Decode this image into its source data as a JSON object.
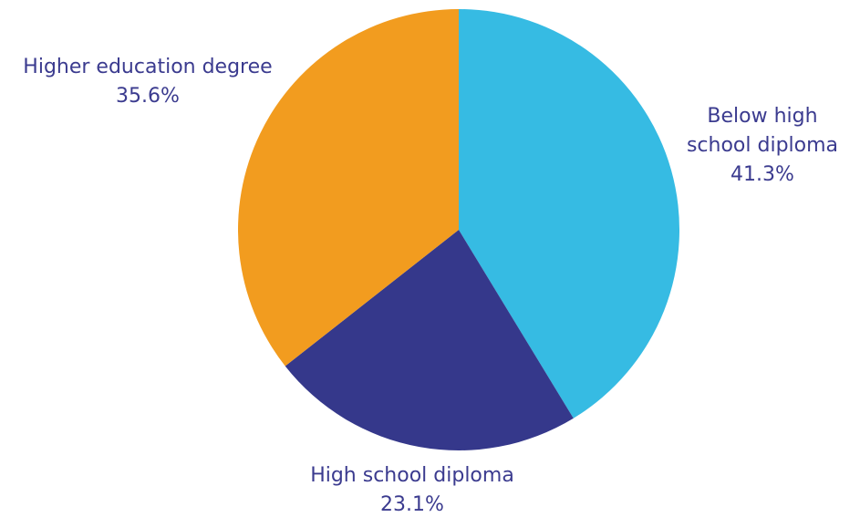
{
  "chart_data": {
    "type": "pie",
    "title": "",
    "start_angle_deg": 0,
    "direction": "clockwise",
    "label_color": "#3b3b8f",
    "slices": [
      {
        "name": "Below high school diploma",
        "label_lines": [
          "Below high",
          "school diploma"
        ],
        "value": 41.3,
        "value_label": "41.3%",
        "color": "#36bbe3"
      },
      {
        "name": "High school diploma",
        "label_lines": [
          "High school diploma"
        ],
        "value": 23.1,
        "value_label": "23.1%",
        "color": "#35388b"
      },
      {
        "name": "Higher education degree",
        "label_lines": [
          "Higher education degree"
        ],
        "value": 35.6,
        "value_label": "35.6%",
        "color": "#f29c1f"
      }
    ]
  }
}
